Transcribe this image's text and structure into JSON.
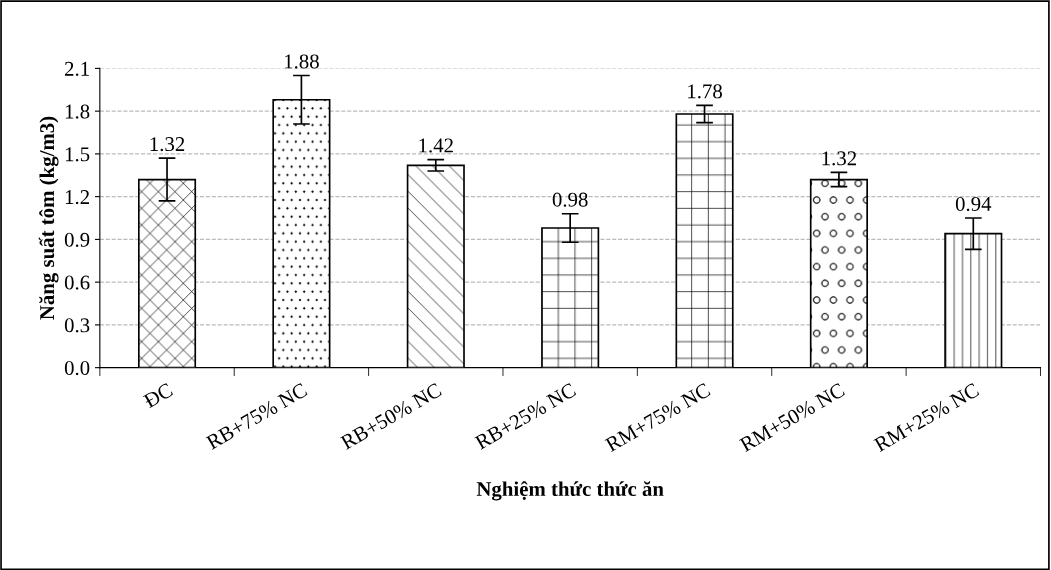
{
  "chart_data": {
    "type": "bar",
    "xlabel": "Nghiệm thức thức ăn",
    "ylabel": "Năng suất tôm (kg/m3)",
    "categories": [
      "ĐC",
      "RB+75% NC",
      "RB+50% NC",
      "RB+25% NC",
      "RM+75% NC",
      "RM+50% NC",
      "RM+25% NC"
    ],
    "values": [
      1.32,
      1.88,
      1.42,
      0.98,
      1.78,
      1.32,
      0.94
    ],
    "errors": [
      0.15,
      0.17,
      0.04,
      0.1,
      0.06,
      0.05,
      0.11
    ],
    "color": "#000000",
    "ylim": [
      0,
      2.1
    ],
    "yticks": [
      {
        "value": 0,
        "label": "0.0"
      },
      {
        "value": 0.3,
        "label": "0.3"
      },
      {
        "value": 0.6,
        "label": "0.6"
      },
      {
        "value": 0.9,
        "label": "0.9"
      },
      {
        "value": 1.2,
        "label": "1.2"
      },
      {
        "value": 1.5,
        "label": "1.5"
      },
      {
        "value": 1.8,
        "label": "1.8"
      },
      {
        "value": 2.1,
        "label": "2.1"
      }
    ],
    "grid": "y",
    "data_labels": true
  }
}
